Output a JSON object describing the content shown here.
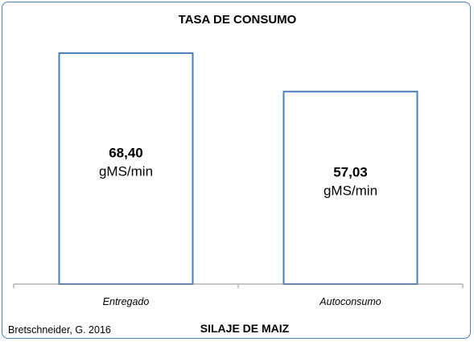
{
  "chart_data": {
    "type": "bar",
    "title": "TASA DE CONSUMO",
    "xlabel": "SILAJE DE MAIZ",
    "ylabel": "",
    "categories": [
      "Entregado",
      "Autoconsumo"
    ],
    "values": [
      68.4,
      57.03
    ],
    "value_labels": [
      "68,40",
      "57,03"
    ],
    "unit": "gMS/min",
    "ylim": [
      0,
      77
    ],
    "grid": false,
    "legend": "none",
    "source": "Bretschneider, G. 2016",
    "colors": {
      "bar_fill": "#ffffff",
      "bar_stroke": "#4a7ebb",
      "axis": "#8c8c8c",
      "frame": "#4a7ebb"
    }
  }
}
